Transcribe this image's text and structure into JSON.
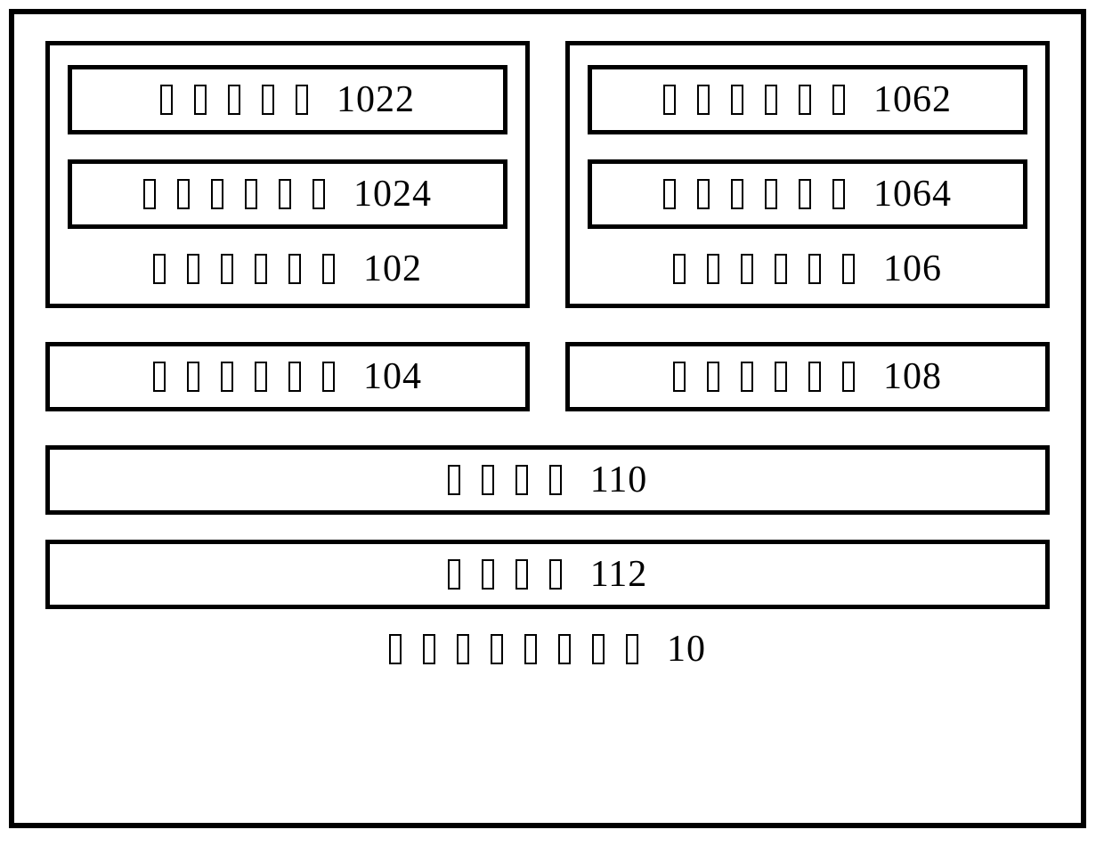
{
  "diagram": {
    "background_color": "#ffffff",
    "border_color": "#000000",
    "border_width_outer": 6,
    "border_width_inner": 5,
    "font_family": "Times New Roman",
    "font_size_label": 42,
    "glyph": {
      "width": 14,
      "height": 34,
      "border_width": 2
    },
    "top_left": {
      "sub_modules": [
        {
          "glyph_count": 5,
          "ref": "1022"
        },
        {
          "glyph_count": 6,
          "ref": "1024"
        }
      ],
      "label": {
        "glyph_count": 6,
        "ref": "102"
      }
    },
    "top_right": {
      "sub_modules": [
        {
          "glyph_count": 6,
          "ref": "1062"
        },
        {
          "glyph_count": 6,
          "ref": "1064"
        }
      ],
      "label": {
        "glyph_count": 6,
        "ref": "106"
      }
    },
    "mid_left": {
      "glyph_count": 6,
      "ref": "104"
    },
    "mid_right": {
      "glyph_count": 6,
      "ref": "108"
    },
    "full_1": {
      "glyph_count": 4,
      "ref": "110"
    },
    "full_2": {
      "glyph_count": 4,
      "ref": "112"
    },
    "footer": {
      "glyph_count": 8,
      "ref": "10"
    }
  }
}
